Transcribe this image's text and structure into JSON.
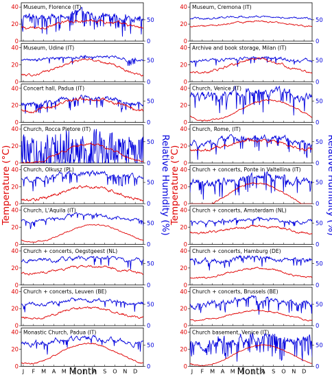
{
  "chart_data": {
    "type": "line",
    "xlabel": "Month",
    "x_ticks": [
      "J",
      "F",
      "M",
      "A",
      "M",
      "J",
      "J",
      "A",
      "S",
      "O",
      "N",
      "D"
    ],
    "left_axis_label": "Temperature ($^\\circ$C)",
    "left_axis_label_text": "Temperature (°C)",
    "right_axis_label": "Relative Humidity (%)",
    "left_ticks": [
      0,
      20,
      40
    ],
    "right_ticks": [
      0,
      50
    ],
    "temperature_ylim": [
      0,
      45
    ],
    "humidity_ylim": [
      0,
      90
    ],
    "series_colors": {
      "temperature": "#e00000",
      "humidity": "#0000dd"
    },
    "panels": [
      {
        "title": "Museum, Florence (IT)",
        "col": 0,
        "row": 0,
        "temp": {
          "base": 20,
          "amp": 5,
          "noise": 2,
          "pk": 0.55
        },
        "rh": {
          "base": 60,
          "amp": 4,
          "noise": 12,
          "spk": 0.2
        }
      },
      {
        "title": "Museum, Udine (IT)",
        "col": 0,
        "row": 1,
        "temp": {
          "base": 17,
          "amp": 9,
          "noise": 1.5,
          "pk": 0.55
        },
        "rh": {
          "base": 55,
          "amp": 4,
          "noise": 5,
          "spk": 0.05
        }
      },
      {
        "title": "Concert hall, Padua (IT)",
        "col": 0,
        "row": 2,
        "temp": {
          "base": 21,
          "amp": 7,
          "noise": 2,
          "pk": 0.55
        },
        "rh": {
          "base": 50,
          "amp": 8,
          "noise": 8,
          "spk": 0.1
        }
      },
      {
        "title": "Church, Rocca Pietore (IT)",
        "col": 0,
        "row": 3,
        "temp": {
          "base": 11,
          "amp": 11,
          "noise": 1.5,
          "pk": 0.55
        },
        "rh": {
          "base": 55,
          "amp": 8,
          "noise": 25,
          "spk": 0.6
        }
      },
      {
        "title": "Church, Olkusz (PL)",
        "col": 0,
        "row": 4,
        "temp": {
          "base": 12,
          "amp": 8,
          "noise": 2,
          "pk": 0.55
        },
        "rh": {
          "base": 65,
          "amp": 6,
          "noise": 8,
          "spk": 0.1
        }
      },
      {
        "title": "Church, L'Aquila (IT)",
        "col": 0,
        "row": 5,
        "temp": {
          "base": 13,
          "amp": 10,
          "noise": 0.8,
          "pk": 0.6
        },
        "rh": {
          "base": 62,
          "amp": 8,
          "noise": 5,
          "spk": 0.05
        }
      },
      {
        "title": "Church + concerts, Oegstgeest (NL)",
        "col": 0,
        "row": 6,
        "temp": {
          "base": 18,
          "amp": 4,
          "noise": 1.5,
          "pk": 0.55
        },
        "rh": {
          "base": 60,
          "amp": 3,
          "noise": 6,
          "spk": 0.05
        }
      },
      {
        "title": "Church + concerts, Leuven (BE)",
        "col": 0,
        "row": 7,
        "temp": {
          "base": 15,
          "amp": 6,
          "noise": 1.5,
          "pk": 0.55
        },
        "rh": {
          "base": 55,
          "amp": 4,
          "noise": 6,
          "spk": 0.05
        }
      },
      {
        "title": "Monastic Church, Padua (IT)",
        "col": 0,
        "row": 8,
        "temp": {
          "base": 15,
          "amp": 12,
          "noise": 1,
          "pk": 0.55
        },
        "rh": {
          "base": 60,
          "amp": 8,
          "noise": 7,
          "spk": 0.05
        }
      },
      {
        "title": "Museum, Cremona (IT)",
        "col": 1,
        "row": 0,
        "temp": {
          "base": 20,
          "amp": 3,
          "noise": 1,
          "pk": 0.55
        },
        "rh": {
          "base": 55,
          "amp": 2,
          "noise": 3,
          "spk": 0.0
        }
      },
      {
        "title": "Archive and book storage, Milan (IT)",
        "col": 1,
        "row": 1,
        "temp": {
          "base": 18,
          "amp": 8,
          "noise": 1.5,
          "pk": 0.55
        },
        "rh": {
          "base": 52,
          "amp": 4,
          "noise": 5,
          "spk": 0.05
        }
      },
      {
        "title": "Church, Venice (IT)",
        "col": 1,
        "row": 2,
        "temp": {
          "base": 14,
          "amp": 12,
          "noise": 1,
          "pk": 0.65
        },
        "rh": {
          "base": 65,
          "amp": 8,
          "noise": 14,
          "spk": 0.15
        }
      },
      {
        "title": "Church, Rome, (IT)",
        "col": 1,
        "row": 3,
        "temp": {
          "base": 21,
          "amp": 6,
          "noise": 2,
          "pk": 0.55
        },
        "rh": {
          "base": 52,
          "amp": 6,
          "noise": 10,
          "spk": 0.1
        }
      },
      {
        "title": "Church + concerts, Ponte in Valtellina (IT)",
        "col": 1,
        "row": 4,
        "temp": {
          "base": 10,
          "amp": 14,
          "noise": 1,
          "pk": 0.55
        },
        "rh": {
          "base": 55,
          "amp": 10,
          "noise": 12,
          "spk": 0.1
        }
      },
      {
        "title": "Church + concerts, Amsterdam (NL)",
        "col": 1,
        "row": 5,
        "temp": {
          "base": 17,
          "amp": 4,
          "noise": 1.5,
          "pk": 0.55
        },
        "rh": {
          "base": 55,
          "amp": 3,
          "noise": 5,
          "spk": 0.05
        }
      },
      {
        "title": "Church + concerts, Hamburg (DE)",
        "col": 1,
        "row": 6,
        "temp": {
          "base": 14,
          "amp": 6,
          "noise": 1.2,
          "pk": 0.55
        },
        "rh": {
          "base": 60,
          "amp": 5,
          "noise": 8,
          "spk": 0.05
        }
      },
      {
        "title": "Church + concerts, Brussels (BE)",
        "col": 1,
        "row": 7,
        "temp": {
          "base": 12,
          "amp": 6,
          "noise": 1,
          "pk": 0.55
        },
        "rh": {
          "base": 55,
          "amp": 6,
          "noise": 9,
          "spk": 0.1
        }
      },
      {
        "title": "Church basement, Venice (IT)",
        "col": 1,
        "row": 8,
        "temp": {
          "base": 13,
          "amp": 12,
          "noise": 0.6,
          "pk": 0.6
        },
        "rh": {
          "base": 62,
          "amp": 6,
          "noise": 16,
          "spk": 0.25
        }
      }
    ]
  }
}
